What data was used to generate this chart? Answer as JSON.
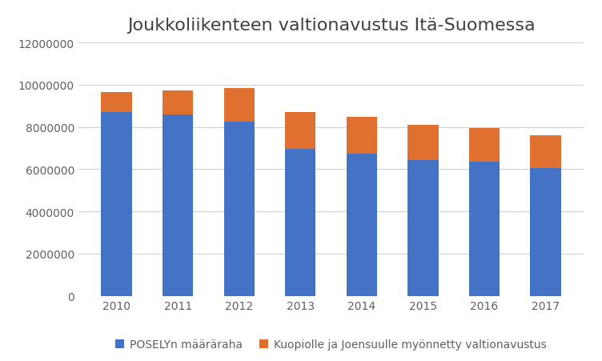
{
  "title": "Joukkoliikenteen valtionavustus Itä-Suomessa",
  "years": [
    2010,
    2011,
    2012,
    2013,
    2014,
    2015,
    2016,
    2017
  ],
  "posely": [
    8700000,
    8600000,
    8250000,
    6950000,
    6750000,
    6450000,
    6350000,
    6050000
  ],
  "kuopio_joensuu": [
    950000,
    1150000,
    1600000,
    1750000,
    1750000,
    1650000,
    1600000,
    1550000
  ],
  "bar_color_posely": "#4472c4",
  "bar_color_kuopio": "#e07030",
  "legend_posely": "POSELYn määräraha",
  "legend_kuopio": "Kuopiolle ja Joensuulle myönnetty valtionavustus",
  "ylim": [
    0,
    12000000
  ],
  "yticks": [
    0,
    2000000,
    4000000,
    6000000,
    8000000,
    10000000,
    12000000
  ],
  "background_color": "#ffffff",
  "grid_color": "#d0d0d0",
  "title_color": "#404040",
  "tick_color": "#606060",
  "title_fontsize": 16,
  "tick_fontsize": 10,
  "legend_fontsize": 10,
  "bar_width": 0.5
}
